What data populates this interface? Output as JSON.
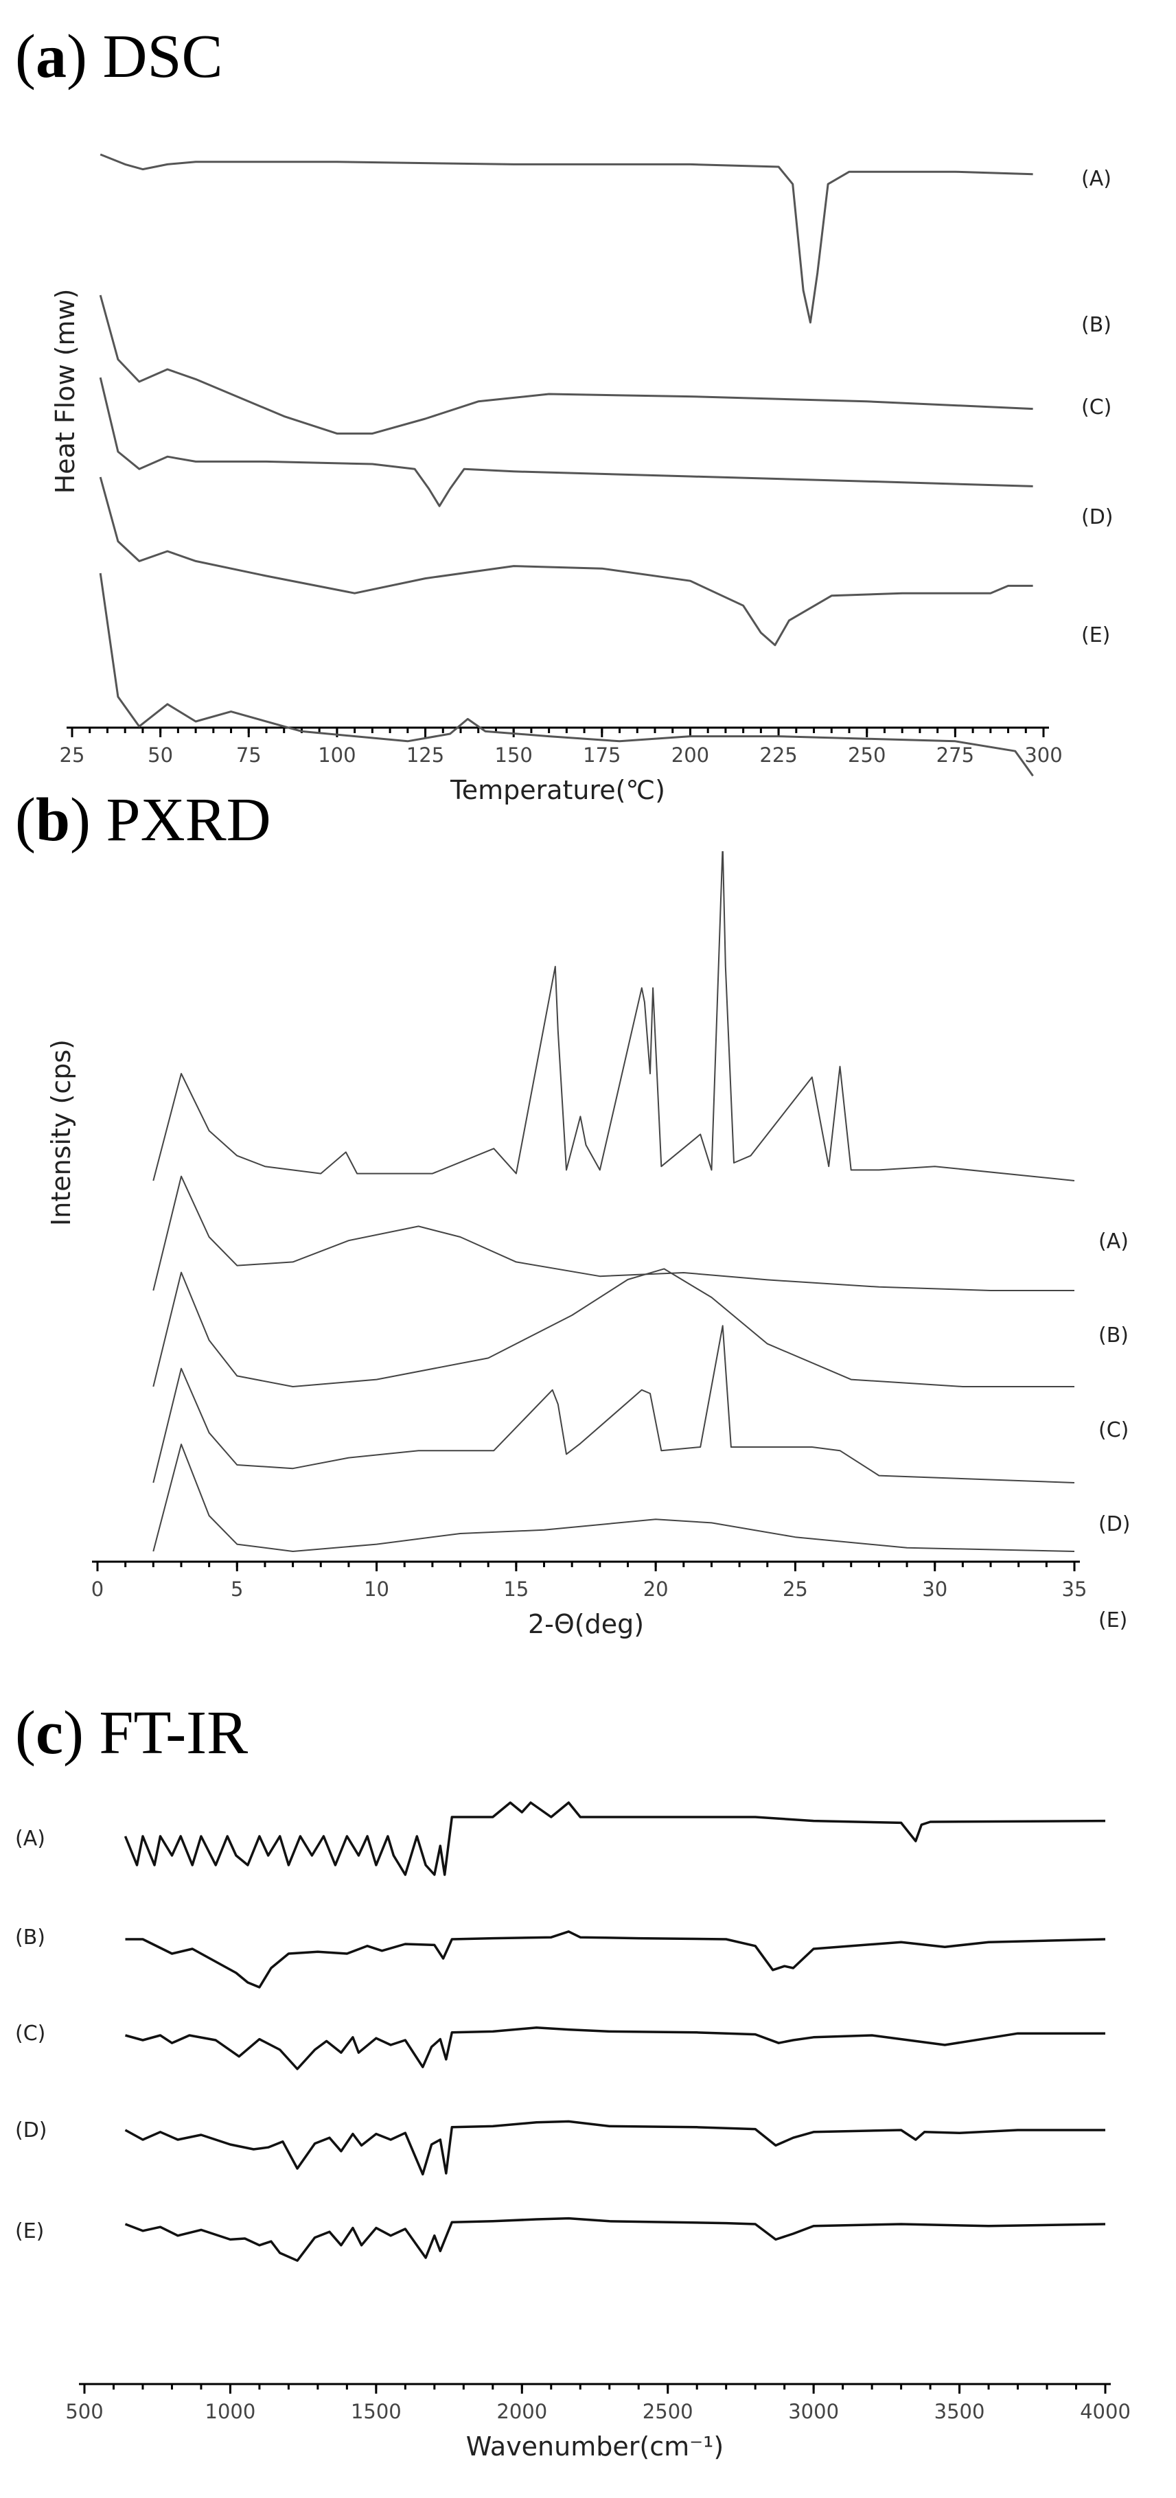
{
  "panels": {
    "a": {
      "letter": "a",
      "name": "DSC"
    },
    "b": {
      "letter": "b",
      "name": "PXRD"
    },
    "c": {
      "letter": "c",
      "name": "FT-IR"
    }
  },
  "chart_data": [
    {
      "type": "line",
      "xlabel": "Temperature(℃)",
      "ylabel": "Heat Flow (mw)",
      "xlim": [
        25,
        300
      ],
      "xticks": [
        25,
        50,
        75,
        100,
        125,
        150,
        175,
        200,
        225,
        250,
        275,
        300
      ],
      "grid": false,
      "series": [
        {
          "name": "(A)",
          "x": [
            33,
            40,
            45,
            52,
            60,
            100,
            150,
            200,
            225,
            229,
            232,
            234,
            236,
            239,
            245,
            275,
            297
          ],
          "y": [
            0,
            -4,
            -6,
            -4,
            -3,
            -3,
            -4,
            -4,
            -5,
            -12,
            -55,
            -68,
            -48,
            -12,
            -7,
            -7,
            -8
          ]
        },
        {
          "name": "(B)",
          "x": [
            33,
            38,
            44,
            52,
            60,
            70,
            85,
            100,
            110,
            125,
            140,
            160,
            200,
            250,
            297
          ],
          "y": [
            0,
            -26,
            -35,
            -30,
            -34,
            -40,
            -49,
            -56,
            -56,
            -50,
            -43,
            -40,
            -41,
            -43,
            -46
          ]
        },
        {
          "name": "(C)",
          "x": [
            33,
            38,
            44,
            52,
            60,
            80,
            110,
            122,
            126,
            129,
            132,
            136,
            150,
            200,
            250,
            297
          ],
          "y": [
            0,
            -30,
            -37,
            -32,
            -34,
            -34,
            -35,
            -37,
            -45,
            -52,
            -45,
            -37,
            -38,
            -40,
            -42,
            -44
          ]
        },
        {
          "name": "(D)",
          "x": [
            33,
            38,
            44,
            52,
            60,
            80,
            105,
            125,
            150,
            175,
            200,
            215,
            220,
            224,
            228,
            240,
            260,
            285,
            290,
            297
          ],
          "y": [
            0,
            -26,
            -34,
            -30,
            -34,
            -40,
            -47,
            -41,
            -36,
            -37,
            -42,
            -52,
            -63,
            -68,
            -58,
            -48,
            -47,
            -47,
            -44,
            -44
          ]
        },
        {
          "name": "(E)",
          "x": [
            33,
            38,
            44,
            52,
            60,
            70,
            90,
            120,
            132,
            137,
            142,
            160,
            180,
            200,
            225,
            250,
            275,
            292,
            297
          ],
          "y": [
            0,
            -50,
            -62,
            -53,
            -60,
            -56,
            -64,
            -68,
            -65,
            -59,
            -64,
            -66,
            -68,
            -66,
            -66,
            -67,
            -68,
            -72,
            -82
          ]
        }
      ]
    },
    {
      "type": "line",
      "xlabel": "2-Θ(deg)",
      "ylabel": "Intensity (cps)",
      "xlim": [
        0,
        35
      ],
      "xticks": [
        0,
        5,
        10,
        15,
        20,
        25,
        30,
        35
      ],
      "grid": false,
      "series": [
        {
          "name": "(A)",
          "x": [
            2,
            3,
            4,
            5,
            6,
            8,
            8.9,
            9.3,
            12,
            14.2,
            15,
            16.4,
            16.5,
            16.8,
            17.3,
            17.5,
            18,
            19.5,
            19.6,
            19.8,
            19.9,
            20.2,
            21.6,
            22,
            22.4,
            22.5,
            22.8,
            23.4,
            25.6,
            26.2,
            26.6,
            27,
            28,
            30,
            35
          ],
          "y": [
            0.0,
            3.0,
            1.4,
            0.7,
            0.4,
            0.2,
            0.8,
            0.2,
            0.2,
            0.9,
            0.2,
            6.0,
            4.2,
            0.3,
            1.8,
            1.0,
            0.3,
            5.4,
            5.0,
            3.0,
            5.4,
            0.4,
            1.3,
            0.3,
            9.4,
            6.0,
            0.5,
            0.7,
            2.9,
            0.4,
            3.2,
            0.3,
            0.3,
            0.4,
            0.0
          ]
        },
        {
          "name": "(B)",
          "x": [
            2,
            3,
            4,
            5,
            7,
            9,
            11.5,
            13,
            15,
            18,
            21,
            24,
            28,
            32,
            35
          ],
          "y": [
            0.0,
            3.2,
            1.5,
            0.7,
            0.8,
            1.4,
            1.8,
            1.5,
            0.8,
            0.4,
            0.5,
            0.3,
            0.1,
            0.0,
            0.0
          ]
        },
        {
          "name": "(C)",
          "x": [
            2,
            3,
            4,
            5,
            7,
            10,
            14,
            17,
            19,
            20.3,
            22,
            24,
            27,
            31,
            35
          ],
          "y": [
            0.0,
            3.2,
            1.3,
            0.3,
            0.0,
            0.2,
            0.8,
            2.0,
            3.0,
            3.3,
            2.5,
            1.2,
            0.2,
            0.0,
            0.0
          ]
        },
        {
          "name": "(D)",
          "x": [
            2,
            3,
            4,
            5,
            7,
            9,
            11.5,
            14.2,
            16.3,
            16.5,
            16.8,
            17.3,
            19.5,
            19.8,
            20.2,
            21.6,
            22.4,
            22.7,
            25.6,
            26.6,
            28,
            35
          ],
          "y": [
            0.0,
            3.2,
            1.4,
            0.5,
            0.4,
            0.7,
            0.9,
            0.9,
            2.6,
            2.2,
            0.8,
            1.1,
            2.6,
            2.5,
            0.9,
            1.0,
            4.4,
            1.0,
            1.0,
            0.9,
            0.2,
            0.0
          ]
        },
        {
          "name": "(E)",
          "x": [
            2,
            3,
            4,
            5,
            7,
            10,
            13,
            16,
            20,
            22,
            25,
            29,
            35
          ],
          "y": [
            0.0,
            3.0,
            1.0,
            0.2,
            0.0,
            0.2,
            0.5,
            0.6,
            0.9,
            0.8,
            0.4,
            0.1,
            0.0
          ]
        }
      ]
    },
    {
      "type": "line",
      "xlabel": "Wavenumber(cm⁻¹)",
      "ylabel": "",
      "xlim": [
        500,
        4000
      ],
      "xticks": [
        500,
        1000,
        1500,
        2000,
        2500,
        3000,
        3500,
        4000
      ],
      "grid": false,
      "series": [
        {
          "name": "(A)",
          "x": [
            640,
            680,
            700,
            740,
            760,
            800,
            830,
            870,
            900,
            950,
            990,
            1020,
            1060,
            1100,
            1130,
            1170,
            1200,
            1240,
            1280,
            1320,
            1360,
            1400,
            1440,
            1470,
            1500,
            1540,
            1560,
            1600,
            1640,
            1670,
            1700,
            1720,
            1735,
            1760,
            1900,
            1960,
            2000,
            2030,
            2100,
            2160,
            2200,
            2400,
            2800,
            3000,
            3300,
            3350,
            3370,
            3400,
            4000
          ],
          "y": [
            0,
            -3,
            0,
            -3,
            0,
            -2,
            0,
            -3,
            0,
            -3,
            0,
            -2,
            -3,
            0,
            -2,
            0,
            -3,
            0,
            -2,
            0,
            -3,
            0,
            -2,
            0,
            -3,
            0,
            -2,
            -4,
            0,
            -3,
            -4,
            -1,
            -4,
            2,
            2,
            3.5,
            2.5,
            3.5,
            2,
            3.5,
            2,
            2,
            2,
            1.6,
            1.4,
            -0.5,
            1.2,
            1.5,
            1.6
          ]
        },
        {
          "name": "(B)",
          "x": [
            640,
            700,
            800,
            870,
            960,
            1020,
            1060,
            1100,
            1140,
            1200,
            1300,
            1400,
            1470,
            1520,
            1600,
            1700,
            1730,
            1760,
            1900,
            2100,
            2160,
            2200,
            2400,
            2700,
            2800,
            2860,
            2900,
            2930,
            3000,
            3300,
            3450,
            3600,
            4000
          ],
          "y": [
            0,
            0,
            -1.5,
            -1,
            -2.5,
            -3.5,
            -4.5,
            -5,
            -3,
            -1.5,
            -1.3,
            -1.5,
            -0.7,
            -1.2,
            -0.5,
            -0.6,
            -2,
            0,
            0.1,
            0.2,
            0.8,
            0.2,
            0.1,
            0.0,
            -0.7,
            -3.2,
            -2.8,
            -3,
            -1,
            -0.3,
            -0.8,
            -0.3,
            0
          ]
        },
        {
          "name": "(C)",
          "x": [
            640,
            700,
            760,
            800,
            860,
            950,
            1030,
            1100,
            1170,
            1230,
            1290,
            1330,
            1380,
            1420,
            1440,
            1500,
            1550,
            1600,
            1660,
            1690,
            1720,
            1740,
            1760,
            1900,
            2050,
            2160,
            2300,
            2600,
            2800,
            2880,
            2930,
            3000,
            3200,
            3450,
            3700,
            4000
          ],
          "y": [
            0,
            -0.5,
            0,
            -0.8,
            0,
            -0.5,
            -2.2,
            -0.4,
            -1.5,
            -3.5,
            -1.5,
            -0.6,
            -1.8,
            -0.2,
            -1.8,
            -0.3,
            -1,
            -0.5,
            -3.3,
            -1.2,
            -0.4,
            -2.5,
            0.3,
            0.4,
            0.8,
            0.6,
            0.4,
            0.3,
            0.1,
            -0.8,
            -0.5,
            -0.2,
            0,
            -1,
            0.2,
            0.2
          ]
        },
        {
          "name": "(D)",
          "x": [
            640,
            700,
            760,
            820,
            900,
            1000,
            1080,
            1130,
            1180,
            1230,
            1290,
            1340,
            1380,
            1420,
            1450,
            1500,
            1550,
            1600,
            1660,
            1690,
            1720,
            1740,
            1760,
            1900,
            2050,
            2160,
            2300,
            2600,
            2800,
            2870,
            2930,
            3000,
            3300,
            3350,
            3380,
            3500,
            3700,
            4000
          ],
          "y": [
            0,
            -1,
            -0.2,
            -1,
            -0.5,
            -1.5,
            -2,
            -1.8,
            -1.2,
            -4,
            -1.4,
            -0.8,
            -2.2,
            -0.4,
            -1.6,
            -0.4,
            -1,
            -0.3,
            -4.6,
            -1.5,
            -1,
            -4.5,
            0.3,
            0.4,
            0.8,
            0.9,
            0.4,
            0.3,
            0.1,
            -1.6,
            -0.8,
            -0.2,
            0,
            -1,
            -0.2,
            -0.3,
            0,
            0
          ]
        },
        {
          "name": "(E)",
          "x": [
            640,
            700,
            760,
            820,
            900,
            1000,
            1050,
            1100,
            1140,
            1170,
            1230,
            1290,
            1340,
            1380,
            1420,
            1450,
            1500,
            1550,
            1600,
            1670,
            1700,
            1720,
            1760,
            1900,
            2050,
            2160,
            2300,
            2700,
            2800,
            2870,
            2930,
            3000,
            3300,
            3600,
            4000
          ],
          "y": [
            0,
            -0.7,
            -0.3,
            -1.2,
            -0.6,
            -1.6,
            -1.5,
            -2.2,
            -1.8,
            -3,
            -3.8,
            -1.4,
            -0.8,
            -2.2,
            -0.4,
            -2.2,
            -0.4,
            -1.2,
            -0.5,
            -3.5,
            -1.2,
            -2.8,
            0.2,
            0.3,
            0.5,
            0.6,
            0.3,
            0.1,
            0.0,
            -1.6,
            -1,
            -0.2,
            0,
            -0.2,
            0
          ]
        }
      ]
    }
  ]
}
